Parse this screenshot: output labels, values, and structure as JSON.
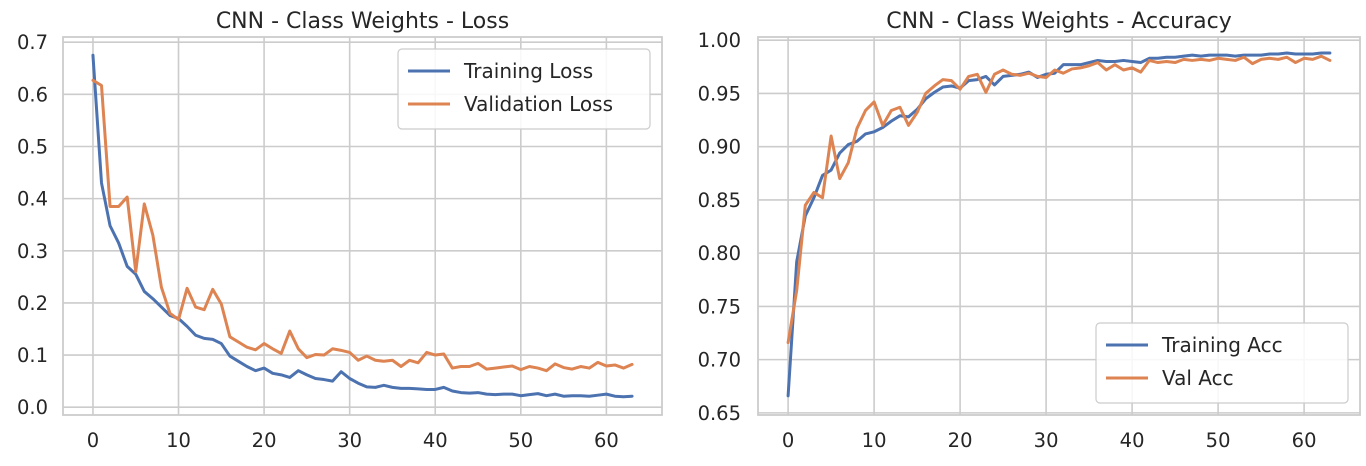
{
  "chart_data": [
    {
      "type": "line",
      "title": "CNN - Class Weights - Loss",
      "xlabel": "",
      "ylabel": "",
      "xlim": [
        -3.5,
        66.5
      ],
      "ylim": [
        -0.015,
        0.71
      ],
      "xticks": [
        0,
        10,
        20,
        30,
        40,
        50,
        60
      ],
      "xtick_labels": [
        "0",
        "10",
        "20",
        "30",
        "40",
        "50",
        "60"
      ],
      "yticks": [
        0.0,
        0.1,
        0.2,
        0.3,
        0.4,
        0.5,
        0.6,
        0.7
      ],
      "ytick_labels": [
        "0.0",
        "0.1",
        "0.2",
        "0.3",
        "0.4",
        "0.5",
        "0.6",
        "0.7"
      ],
      "grid": true,
      "legend_position": "top-right",
      "series": [
        {
          "name": "Training Loss",
          "color": "#4c72b0",
          "values": [
            0.675,
            0.43,
            0.348,
            0.315,
            0.27,
            0.255,
            0.222,
            0.208,
            0.192,
            0.176,
            0.17,
            0.155,
            0.138,
            0.132,
            0.13,
            0.122,
            0.098,
            0.088,
            0.078,
            0.07,
            0.075,
            0.065,
            0.062,
            0.057,
            0.07,
            0.062,
            0.055,
            0.053,
            0.05,
            0.068,
            0.055,
            0.046,
            0.039,
            0.038,
            0.042,
            0.038,
            0.036,
            0.036,
            0.035,
            0.034,
            0.034,
            0.038,
            0.031,
            0.028,
            0.027,
            0.028,
            0.025,
            0.024,
            0.025,
            0.025,
            0.022,
            0.024,
            0.026,
            0.022,
            0.025,
            0.021,
            0.022,
            0.022,
            0.021,
            0.023,
            0.025,
            0.021,
            0.02,
            0.021
          ]
        },
        {
          "name": "Validation Loss",
          "color": "#dd8452",
          "values": [
            0.627,
            0.617,
            0.385,
            0.385,
            0.403,
            0.26,
            0.39,
            0.33,
            0.23,
            0.18,
            0.168,
            0.228,
            0.192,
            0.187,
            0.226,
            0.198,
            0.135,
            0.125,
            0.115,
            0.11,
            0.122,
            0.112,
            0.103,
            0.146,
            0.112,
            0.095,
            0.101,
            0.1,
            0.112,
            0.109,
            0.105,
            0.09,
            0.098,
            0.09,
            0.088,
            0.09,
            0.078,
            0.09,
            0.085,
            0.105,
            0.1,
            0.102,
            0.075,
            0.078,
            0.078,
            0.084,
            0.073,
            0.075,
            0.077,
            0.079,
            0.072,
            0.078,
            0.075,
            0.07,
            0.083,
            0.076,
            0.073,
            0.078,
            0.075,
            0.086,
            0.079,
            0.081,
            0.075,
            0.082
          ]
        }
      ]
    },
    {
      "type": "line",
      "title": "CNN - Class Weights - Accuracy",
      "xlabel": "",
      "ylabel": "",
      "xlim": [
        -3.5,
        66.5
      ],
      "ylim": [
        0.648,
        1.003
      ],
      "xticks": [
        0,
        10,
        20,
        30,
        40,
        50,
        60
      ],
      "xtick_labels": [
        "0",
        "10",
        "20",
        "30",
        "40",
        "50",
        "60"
      ],
      "yticks": [
        0.65,
        0.7,
        0.75,
        0.8,
        0.85,
        0.9,
        0.95,
        1.0
      ],
      "ytick_labels": [
        "0.65",
        "0.70",
        "0.75",
        "0.80",
        "0.85",
        "0.90",
        "0.95",
        "1.00"
      ],
      "grid": true,
      "legend_position": "bottom-right",
      "series": [
        {
          "name": "Training Acc",
          "color": "#4c72b0",
          "values": [
            0.666,
            0.792,
            0.835,
            0.852,
            0.873,
            0.878,
            0.894,
            0.902,
            0.905,
            0.912,
            0.914,
            0.918,
            0.924,
            0.929,
            0.928,
            0.935,
            0.945,
            0.951,
            0.956,
            0.957,
            0.955,
            0.962,
            0.963,
            0.966,
            0.958,
            0.966,
            0.967,
            0.968,
            0.97,
            0.965,
            0.968,
            0.969,
            0.977,
            0.977,
            0.977,
            0.979,
            0.981,
            0.98,
            0.98,
            0.981,
            0.98,
            0.979,
            0.983,
            0.983,
            0.984,
            0.984,
            0.985,
            0.986,
            0.985,
            0.986,
            0.986,
            0.986,
            0.985,
            0.986,
            0.986,
            0.986,
            0.987,
            0.987,
            0.988,
            0.987,
            0.987,
            0.987,
            0.988,
            0.988
          ]
        },
        {
          "name": "Val Acc",
          "color": "#dd8452",
          "values": [
            0.716,
            0.765,
            0.845,
            0.857,
            0.852,
            0.91,
            0.87,
            0.885,
            0.917,
            0.934,
            0.942,
            0.92,
            0.934,
            0.937,
            0.92,
            0.932,
            0.95,
            0.957,
            0.963,
            0.962,
            0.954,
            0.966,
            0.968,
            0.951,
            0.968,
            0.972,
            0.968,
            0.967,
            0.969,
            0.966,
            0.965,
            0.972,
            0.969,
            0.973,
            0.974,
            0.976,
            0.979,
            0.972,
            0.977,
            0.972,
            0.974,
            0.97,
            0.981,
            0.979,
            0.98,
            0.979,
            0.982,
            0.981,
            0.982,
            0.981,
            0.983,
            0.982,
            0.981,
            0.984,
            0.978,
            0.982,
            0.983,
            0.982,
            0.984,
            0.979,
            0.983,
            0.982,
            0.985,
            0.981
          ]
        }
      ]
    }
  ]
}
